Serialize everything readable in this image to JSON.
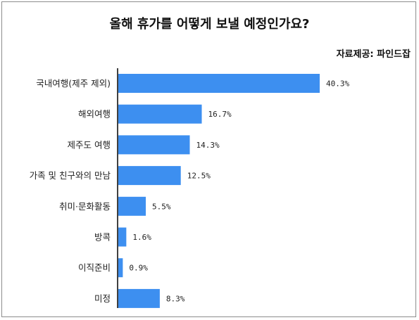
{
  "title": "올해 휴가를 어떻게 보낼 예정인가요?",
  "source": "자료제공: 파인드잡",
  "chart_data": {
    "type": "bar",
    "orientation": "horizontal",
    "categories": [
      "국내여행(제주 제외)",
      "해외여행",
      "제주도 여행",
      "가족 및 친구와의 만남",
      "취미·문화활동",
      "방콕",
      "이직준비",
      "미정"
    ],
    "values": [
      40.3,
      16.7,
      14.3,
      12.5,
      5.5,
      1.6,
      0.9,
      8.3
    ],
    "value_labels": [
      "40.3%",
      "16.7%",
      "14.3%",
      "12.5%",
      "5.5%",
      "1.6%",
      "0.9%",
      "8.3%"
    ],
    "unit": "%",
    "xlim": [
      0,
      41
    ],
    "bar_color": "#3d8ff0",
    "grid": false,
    "legend": "none"
  }
}
